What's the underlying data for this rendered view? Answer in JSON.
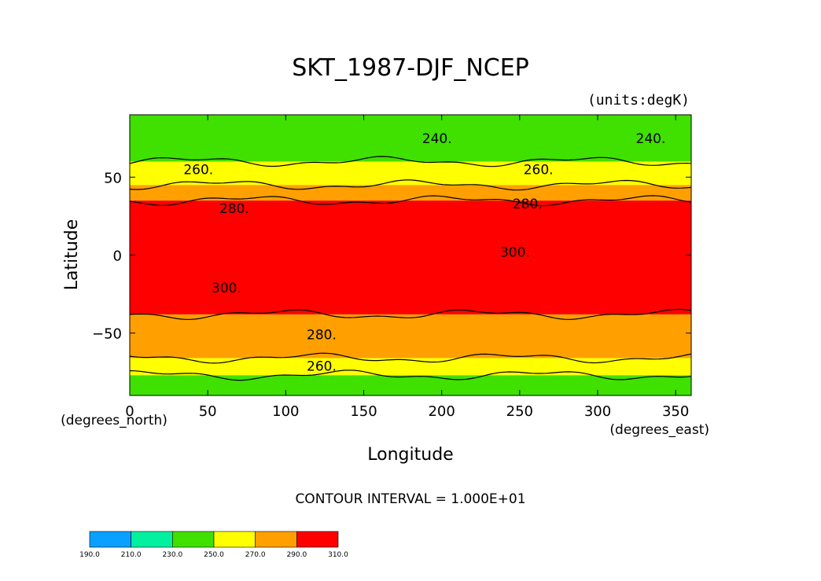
{
  "chart_data": {
    "type": "heatmap",
    "title": "SKT_1987-DJF_NCEP",
    "units_label": "(units:degK)",
    "xlabel": "Longitude",
    "ylabel": "Latitude",
    "x_unit_label": "(degrees_east)",
    "y_unit_label": "(degrees_north)",
    "xlim": [
      0,
      360
    ],
    "ylim": [
      -90,
      90
    ],
    "x_ticks": [
      0,
      50,
      100,
      150,
      200,
      250,
      300,
      350
    ],
    "x_tick_labels": [
      "0",
      "50",
      "100",
      "150",
      "200",
      "250",
      "300",
      "350"
    ],
    "y_ticks": [
      -50,
      0,
      50
    ],
    "y_tick_labels": [
      "−50",
      "0",
      "50"
    ],
    "contour_interval_text": "CONTOUR INTERVAL = 1.000E+01",
    "colorbar": {
      "levels": [
        190,
        210,
        230,
        250,
        270,
        290,
        310
      ],
      "tick_labels": [
        "190.0",
        "210.0",
        "230.0",
        "250.0",
        "270.0",
        "290.0",
        "310.0"
      ],
      "colors": [
        "#0aa0ff",
        "#00f0a0",
        "#40e000",
        "#ffff00",
        "#ffa000",
        "#ff0000"
      ]
    },
    "zonal_bands": [
      {
        "lat_min": -90,
        "lat_max": -77,
        "level": 240
      },
      {
        "lat_min": -77,
        "lat_max": -66,
        "level": 260
      },
      {
        "lat_min": -66,
        "lat_max": -38,
        "level": 280
      },
      {
        "lat_min": -38,
        "lat_max": 35,
        "level": 300
      },
      {
        "lat_min": 35,
        "lat_max": 45,
        "level": 280
      },
      {
        "lat_min": 45,
        "lat_max": 60,
        "level": 260
      },
      {
        "lat_min": 60,
        "lat_max": 90,
        "level": 240
      }
    ],
    "contour_labels": [
      {
        "text": "240.",
        "lon": 197,
        "lat": 75
      },
      {
        "text": "240.",
        "lon": 334,
        "lat": 75
      },
      {
        "text": "260.",
        "lon": 44,
        "lat": 55
      },
      {
        "text": "260.",
        "lon": 262,
        "lat": 55
      },
      {
        "text": "280.",
        "lon": 67,
        "lat": 30
      },
      {
        "text": "280.",
        "lon": 255,
        "lat": 33
      },
      {
        "text": "300.",
        "lon": 247,
        "lat": 2
      },
      {
        "text": "300.",
        "lon": 62,
        "lat": -21
      },
      {
        "text": "280.",
        "lon": 123,
        "lat": -51
      },
      {
        "text": "260.",
        "lon": 123,
        "lat": -71
      }
    ]
  }
}
